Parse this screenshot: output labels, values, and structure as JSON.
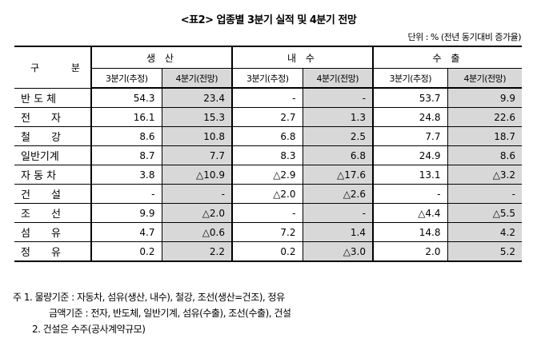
{
  "title": "<표2> 업종별 3분기 실적 및 4분기 전망",
  "unit": "단위 : % (전년 동기대비 증가율)",
  "table": {
    "header_gubun": "구 분",
    "groups": [
      "생 산",
      "내 수",
      "수 출"
    ],
    "subheaders": [
      "3분기(추정)",
      "4분기(전망)",
      "3분기(추정)",
      "4분기(전망)",
      "3분기(추정)",
      "4분기(전망)"
    ],
    "rows": [
      {
        "label": "반 도 체",
        "cells": [
          "54.3",
          "23.4",
          "-",
          "-",
          "53.7",
          "9.9"
        ]
      },
      {
        "label": "전　　자",
        "cells": [
          "16.1",
          "15.3",
          "2.7",
          "1.3",
          "24.8",
          "22.6"
        ]
      },
      {
        "label": "철　　강",
        "cells": [
          "8.6",
          "10.8",
          "6.8",
          "2.5",
          "7.7",
          "18.7"
        ]
      },
      {
        "label": "일반기계",
        "cells": [
          "8.7",
          "7.7",
          "8.3",
          "6.8",
          "24.9",
          "8.6"
        ]
      },
      {
        "label": "자 동 차",
        "cells": [
          "3.8",
          "△10.9",
          "△2.9",
          "△17.6",
          "13.1",
          "△3.2"
        ]
      },
      {
        "label": "건　　설",
        "cells": [
          "-",
          "-",
          "△2.0",
          "△2.6",
          "-",
          "-"
        ]
      },
      {
        "label": "조　　선",
        "cells": [
          "9.9",
          "△2.0",
          "-",
          "-",
          "△4.4",
          "△5.5"
        ]
      },
      {
        "label": "섬　　유",
        "cells": [
          "4.7",
          "△0.6",
          "7.2",
          "1.4",
          "14.8",
          "4.2"
        ]
      },
      {
        "label": "정　　유",
        "cells": [
          "0.2",
          "2.2",
          "0.2",
          "△3.0",
          "2.0",
          "5.2"
        ]
      }
    ]
  },
  "notes": {
    "line1": "주 1. 물량기준 : 자동차, 섬유(생산, 내수), 철강, 조선(생산=건조), 정유",
    "line2": "금액기준 : 전자, 반도체, 일반기계, 섬유(수출), 조선(수출), 건설",
    "line3": "2. 건설은 수주(공사계약규모)"
  },
  "colors": {
    "shade": "#d8d8d8"
  }
}
